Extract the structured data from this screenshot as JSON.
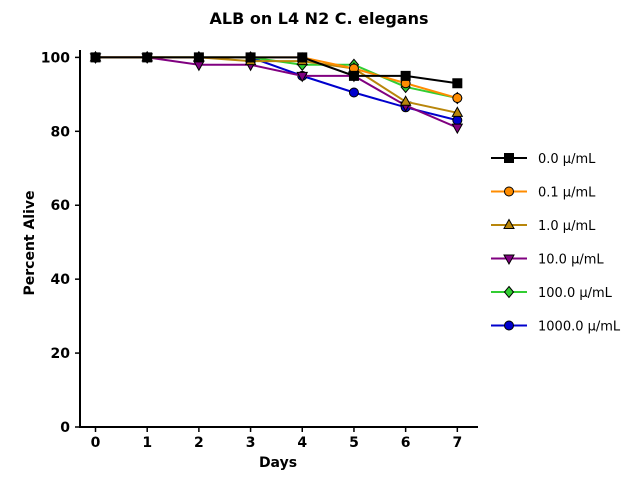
{
  "chart_data": {
    "type": "line",
    "title": "ALB on L4 N2 C. elegans",
    "xlabel": "Days",
    "ylabel": "Percent Alive",
    "x": [
      0,
      1,
      2,
      3,
      4,
      5,
      6,
      7
    ],
    "xlim": [
      -0.3,
      7.4
    ],
    "ylim": [
      0,
      102
    ],
    "xticks": [
      "0",
      "1",
      "2",
      "3",
      "4",
      "5",
      "6",
      "7"
    ],
    "yticks": [
      "0",
      "20",
      "40",
      "60",
      "80",
      "100"
    ],
    "legend_position": "right",
    "grid": false,
    "series": [
      {
        "name": "0.0 μ/mL",
        "color": "#000000",
        "marker": "square",
        "values": [
          100,
          100,
          100,
          100,
          100,
          95,
          95,
          93
        ]
      },
      {
        "name": "0.1 μ/mL",
        "color": "#ff8c00",
        "marker": "circle",
        "values": [
          100,
          100,
          100,
          100,
          100,
          97,
          93,
          89
        ]
      },
      {
        "name": "1.0 μ/mL",
        "color": "#b8860b",
        "marker": "triangle-up",
        "values": [
          100,
          100,
          100,
          99,
          99,
          97,
          88,
          85
        ]
      },
      {
        "name": "10.0 μ/mL",
        "color": "#800080",
        "marker": "triangle-down",
        "values": [
          100,
          100,
          98,
          98,
          95,
          95,
          87,
          81
        ]
      },
      {
        "name": "100.0 μ/mL",
        "color": "#32cd32",
        "marker": "diamond",
        "values": [
          100,
          100,
          100,
          100,
          98,
          98,
          92,
          89
        ]
      },
      {
        "name": "1000.0 μ/mL",
        "color": "#0000cd",
        "marker": "circle",
        "values": [
          100,
          100,
          100,
          100,
          95,
          90.5,
          86.5,
          83
        ]
      }
    ]
  }
}
